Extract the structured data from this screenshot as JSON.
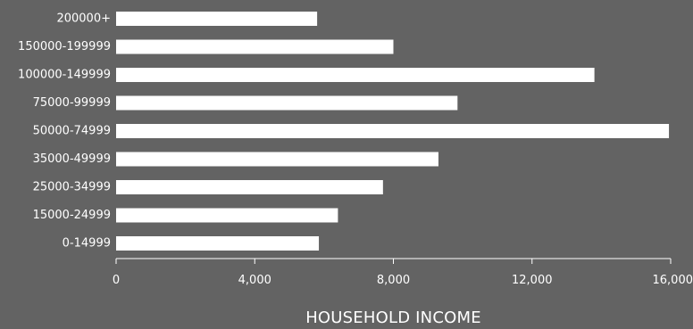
{
  "chart_data": {
    "type": "bar",
    "orientation": "horizontal",
    "categories": [
      "200000+",
      "150000-199999",
      "100000-149999",
      "75000-99999",
      "50000-74999",
      "35000-49999",
      "25000-34999",
      "15000-24999",
      "0-14999"
    ],
    "values": [
      5800,
      8000,
      13800,
      9850,
      15950,
      9300,
      7700,
      6400,
      5850
    ],
    "xlabel": "HOUSEHOLD INCOME",
    "ylabel": "",
    "xlim": [
      0,
      16000
    ],
    "xticks": [
      0,
      4000,
      8000,
      12000,
      16000
    ],
    "xtick_labels": [
      "0",
      "4,000",
      "8,000",
      "12,000",
      "16,000"
    ],
    "grid": false,
    "colors": {
      "background": "#636363",
      "bar": "#ffffff",
      "text": "#ffffff",
      "axis": "#ffffff"
    }
  }
}
